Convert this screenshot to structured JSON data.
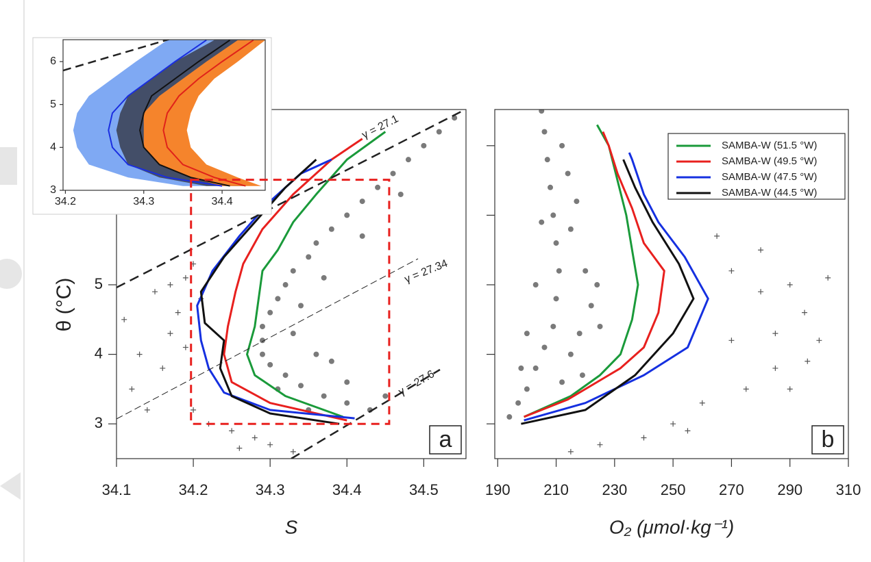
{
  "chart_data": [
    {
      "type": "line",
      "xlabel": "S",
      "ylabel": "θ (°C)",
      "label": "a",
      "xlim": [
        34.1,
        34.555
      ],
      "ylim": [
        2.5,
        7.52
      ],
      "xticks": [
        34.1,
        34.2,
        34.3,
        34.4,
        34.5
      ],
      "yticks": [
        3,
        4,
        5
      ],
      "annotations": [
        "γ = 27.1",
        "γ = 27.34",
        "γ = 27.6"
      ],
      "series": [
        {
          "name": "SAMBA-W (51.5 °W)",
          "color": "#1a9a3a",
          "x": [
            34.395,
            34.32,
            34.28,
            34.27,
            34.28,
            34.285,
            34.29,
            34.31,
            34.33,
            34.36,
            34.4,
            34.45
          ],
          "values": [
            3.1,
            3.4,
            3.7,
            4.0,
            4.4,
            4.8,
            5.2,
            5.5,
            5.9,
            6.3,
            6.8,
            7.2
          ]
        },
        {
          "name": "SAMBA-W (49.5 °W)",
          "color": "#e8201e",
          "x": [
            34.4,
            34.3,
            34.25,
            34.24,
            34.245,
            34.255,
            34.265,
            34.29,
            34.33,
            34.38,
            34.42
          ],
          "values": [
            3.05,
            3.3,
            3.6,
            4.0,
            4.4,
            4.9,
            5.3,
            5.8,
            6.3,
            6.8,
            7.1
          ]
        },
        {
          "name": "SAMBA-W (47.5 °W)",
          "color": "#1530e0",
          "x": [
            34.41,
            34.3,
            34.24,
            34.22,
            34.21,
            34.205,
            34.225,
            34.26,
            34.3,
            34.34,
            34.38
          ],
          "values": [
            3.08,
            3.2,
            3.45,
            3.8,
            4.2,
            4.7,
            5.2,
            5.7,
            6.2,
            6.6,
            6.8
          ]
        },
        {
          "name": "SAMBA-W (44.5 °W)",
          "color": "#111111",
          "x": [
            34.39,
            34.3,
            34.25,
            34.235,
            34.24,
            34.215,
            34.21,
            34.24,
            34.28,
            34.32,
            34.36
          ],
          "values": [
            3.0,
            3.15,
            3.4,
            3.8,
            4.2,
            4.45,
            4.9,
            5.4,
            5.9,
            6.4,
            6.8
          ]
        }
      ],
      "scatter": [
        {
          "marker": "dot",
          "color": "#7a7a7a",
          "x": [
            34.43,
            34.4,
            34.37,
            34.34,
            34.32,
            34.3,
            34.29,
            34.29,
            34.29,
            34.3,
            34.31,
            34.32,
            34.33,
            34.35,
            34.36,
            34.38,
            34.4,
            34.42,
            34.44,
            34.46,
            34.48,
            34.5,
            34.52,
            34.54,
            34.36,
            34.33,
            34.34,
            34.37,
            34.4,
            34.45,
            34.38,
            34.42,
            34.47,
            34.31,
            34.35
          ],
          "values": [
            3.2,
            3.3,
            3.4,
            3.55,
            3.7,
            3.85,
            4.0,
            4.2,
            4.4,
            4.6,
            4.8,
            5.0,
            5.2,
            5.4,
            5.6,
            5.8,
            6.0,
            6.2,
            6.4,
            6.6,
            6.8,
            7.0,
            7.2,
            7.4,
            4.0,
            4.3,
            4.7,
            5.1,
            3.6,
            3.4,
            3.9,
            5.7,
            6.3,
            3.5,
            3.2
          ]
        },
        {
          "marker": "cross",
          "color": "#555555",
          "x": [
            34.15,
            34.18,
            34.17,
            34.13,
            34.12,
            34.2,
            34.25,
            34.3,
            34.28,
            34.22,
            34.16,
            34.19,
            34.17,
            34.14,
            34.21,
            34.33,
            34.26,
            34.11,
            34.19,
            34.2
          ],
          "values": [
            4.9,
            4.6,
            4.3,
            4.0,
            3.5,
            3.2,
            2.9,
            2.7,
            2.8,
            3.0,
            3.8,
            5.1,
            5.0,
            3.2,
            4.8,
            2.6,
            2.65,
            4.5,
            4.1,
            5.3
          ]
        }
      ]
    },
    {
      "type": "line",
      "xlabel": "O₂ (μmol·kg⁻¹)",
      "label": "b",
      "legend": "top-right",
      "show_ytick_labels": false,
      "xlim": [
        189,
        310
      ],
      "ylim": [
        2.5,
        7.52
      ],
      "xticks": [
        190,
        210,
        230,
        250,
        270,
        290,
        310
      ],
      "yticks": [
        3,
        4,
        5,
        6,
        7
      ],
      "series": [
        {
          "name": "SAMBA-W (51.5 °W)",
          "color": "#1a9a3a",
          "x": [
            199,
            215,
            225,
            232,
            236,
            238,
            236,
            234,
            231,
            228,
            224
          ],
          "values": [
            3.1,
            3.4,
            3.7,
            4.0,
            4.5,
            5.0,
            5.5,
            6.0,
            6.5,
            7.0,
            7.3
          ]
        },
        {
          "name": "SAMBA-W (49.5 °W)",
          "color": "#e8201e",
          "x": [
            199,
            214,
            232,
            240,
            245,
            247,
            240,
            236,
            231,
            228,
            226
          ],
          "values": [
            3.1,
            3.35,
            3.8,
            4.1,
            4.6,
            5.2,
            5.6,
            6.1,
            6.6,
            7.0,
            7.2
          ]
        },
        {
          "name": "SAMBA-W (47.5 °W)",
          "color": "#1530e0",
          "x": [
            199,
            220,
            240,
            255,
            262,
            254,
            245,
            240,
            236,
            235
          ],
          "values": [
            3.05,
            3.3,
            3.7,
            4.1,
            4.8,
            5.4,
            5.9,
            6.3,
            6.8,
            6.9
          ]
        },
        {
          "name": "SAMBA-W (44.5 °W)",
          "color": "#111111",
          "x": [
            198,
            220,
            237,
            250,
            257,
            252,
            243,
            237,
            233
          ],
          "values": [
            3.0,
            3.2,
            3.7,
            4.3,
            4.8,
            5.3,
            5.9,
            6.4,
            6.8
          ]
        }
      ],
      "scatter": [
        {
          "marker": "dot",
          "color": "#7a7a7a",
          "x": [
            194,
            197,
            200,
            203,
            206,
            209,
            210,
            211,
            210,
            209,
            208,
            207,
            206,
            205,
            215,
            218,
            222,
            220,
            215,
            214,
            212,
            200,
            203,
            205,
            225,
            198,
            212,
            219,
            224,
            217
          ],
          "values": [
            3.1,
            3.3,
            3.5,
            3.8,
            4.1,
            4.4,
            4.8,
            5.2,
            5.6,
            6.0,
            6.4,
            6.8,
            7.2,
            7.5,
            4.0,
            4.3,
            4.7,
            5.2,
            5.8,
            6.6,
            7.0,
            4.3,
            5.0,
            5.9,
            4.4,
            3.8,
            3.6,
            3.7,
            5.0,
            6.2
          ]
        },
        {
          "marker": "cross",
          "color": "#555555",
          "x": [
            270,
            280,
            290,
            295,
            300,
            285,
            275,
            260,
            250,
            240,
            225,
            215,
            270,
            290,
            265,
            280,
            303,
            255,
            285,
            296
          ],
          "values": [
            5.2,
            4.9,
            5.0,
            4.6,
            4.2,
            3.8,
            3.5,
            3.3,
            3.0,
            2.8,
            2.7,
            2.6,
            4.2,
            3.5,
            5.7,
            5.5,
            5.1,
            2.9,
            4.3,
            3.9
          ]
        }
      ]
    },
    {
      "type": "band",
      "xlim": [
        34.197,
        34.455
      ],
      "ylim": [
        3,
        6.51
      ],
      "xticks": [
        34.2,
        34.3,
        34.4
      ],
      "yticks": [
        3,
        4,
        5,
        6
      ],
      "y": [
        3.1,
        3.3,
        3.6,
        4.0,
        4.4,
        4.8,
        5.2,
        5.6,
        6.0,
        6.5
      ],
      "series": [
        {
          "color": "#1a2ee0",
          "band_color": "#7fa9f3",
          "values": [
            34.4,
            34.33,
            34.28,
            34.26,
            34.255,
            34.26,
            34.28,
            34.31,
            34.34,
            34.38
          ],
          "lower": [
            34.35,
            34.28,
            34.23,
            34.215,
            34.21,
            34.215,
            34.23,
            34.26,
            34.29,
            34.33
          ],
          "upper": [
            34.43,
            34.38,
            34.33,
            34.31,
            34.305,
            34.31,
            34.33,
            34.36,
            34.39,
            34.43
          ]
        },
        {
          "color": "#111111",
          "band_color": "#434e68",
          "values": [
            34.41,
            34.36,
            34.32,
            34.3,
            34.295,
            34.3,
            34.31,
            34.34,
            34.37,
            34.41
          ],
          "lower": [
            34.38,
            34.32,
            34.28,
            34.27,
            34.265,
            34.27,
            34.28,
            34.31,
            34.34,
            34.39
          ],
          "upper": [
            34.43,
            34.39,
            34.35,
            34.33,
            34.325,
            34.33,
            34.345,
            34.37,
            34.4,
            34.43
          ]
        },
        {
          "color": "#e0221a",
          "band_color": "#f5842c",
          "values": [
            34.43,
            34.39,
            34.35,
            34.33,
            34.325,
            34.33,
            34.345,
            34.37,
            34.4,
            34.44
          ],
          "lower": [
            34.4,
            34.36,
            34.32,
            34.3,
            34.3,
            34.3,
            34.32,
            34.35,
            34.38,
            34.42
          ],
          "upper": [
            34.45,
            34.42,
            34.38,
            34.36,
            34.355,
            34.36,
            34.37,
            34.39,
            34.42,
            34.455
          ]
        }
      ]
    }
  ]
}
